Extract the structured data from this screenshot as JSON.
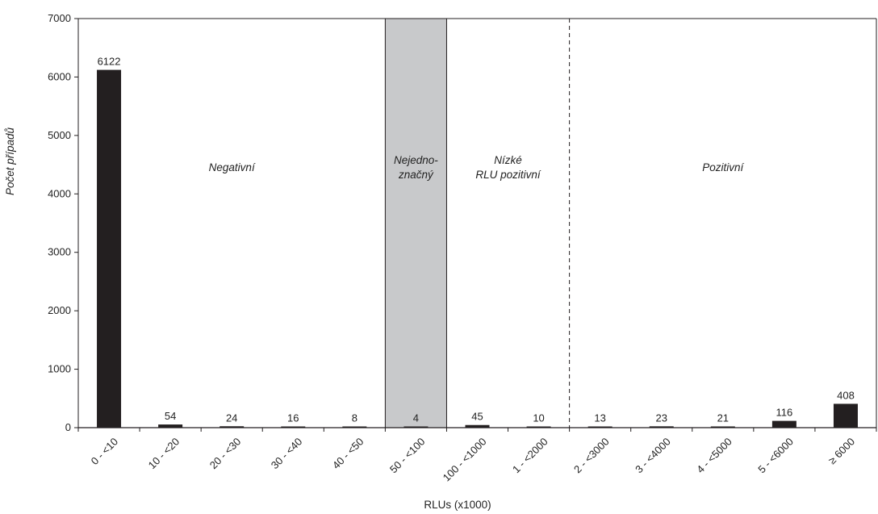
{
  "chart_data": {
    "type": "bar",
    "xlabel": "RLUs (x1000)",
    "ylabel": "Počet případů",
    "ylim": [
      0,
      7000
    ],
    "yticks": [
      0,
      1000,
      2000,
      3000,
      4000,
      5000,
      6000,
      7000
    ],
    "grid": false,
    "categories": [
      "0 - <10",
      "10 - <20",
      "20 - <30",
      "30 - <40",
      "40 - <50",
      "50 - <100",
      "100 - <1000",
      "1 - <2000",
      "2 - <3000",
      "3 - <4000",
      "4 - <5000",
      "5 - <6000",
      "≥ 6000"
    ],
    "values": [
      6122,
      54,
      24,
      16,
      8,
      4,
      45,
      10,
      13,
      23,
      21,
      116,
      408
    ],
    "bar_color": "#231f20",
    "regions": [
      {
        "lines": [
          "Negativní"
        ],
        "from_category": 0,
        "to_category": 4
      },
      {
        "lines": [
          "Nejedno-",
          "značný"
        ],
        "from_category": 5,
        "to_category": 5,
        "shaded": true,
        "fill": "#c8c9cb"
      },
      {
        "lines": [
          "Nízké",
          "RLU pozitivní"
        ],
        "from_category": 6,
        "to_category": 7
      },
      {
        "lines": [
          "Pozitivní"
        ],
        "from_category": 8,
        "to_category": 12
      }
    ]
  }
}
